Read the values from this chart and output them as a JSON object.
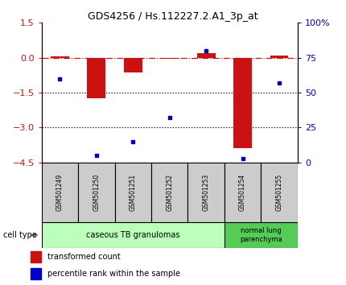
{
  "title": "GDS4256 / Hs.112227.2.A1_3p_at",
  "samples": [
    "GSM501249",
    "GSM501250",
    "GSM501251",
    "GSM501252",
    "GSM501253",
    "GSM501254",
    "GSM501255"
  ],
  "transformed_count": [
    0.05,
    -1.75,
    -0.62,
    -0.05,
    0.2,
    -3.9,
    0.1
  ],
  "percentile_rank": [
    60,
    5,
    15,
    32,
    80,
    3,
    57
  ],
  "bar_color": "#cc1111",
  "dot_color": "#0000cc",
  "ylim_left": [
    -4.5,
    1.5
  ],
  "yticks_left": [
    -4.5,
    -3.0,
    -1.5,
    0,
    1.5
  ],
  "ylim_right": [
    0,
    100
  ],
  "yticks_right": [
    0,
    25,
    50,
    75,
    100
  ],
  "yticklabels_right": [
    "0",
    "25",
    "50",
    "75",
    "100%"
  ],
  "hline_y": 0,
  "dotted_lines": [
    -1.5,
    -3.0
  ],
  "cell_type_1_label": "caseous TB granulomas",
  "cell_type_1_color": "#bbffbb",
  "cell_type_2_label": "normal lung\nparenchyma",
  "cell_type_2_color": "#55cc55",
  "legend_red_label": "transformed count",
  "legend_blue_label": "percentile rank within the sample",
  "bar_width": 0.5,
  "background_color": "#ffffff",
  "plot_bg_color": "#ffffff",
  "cell_type_header": "cell type",
  "tick_label_color_left": "#cc1111",
  "tick_label_color_right": "#0000cc",
  "sample_box_color": "#cccccc"
}
